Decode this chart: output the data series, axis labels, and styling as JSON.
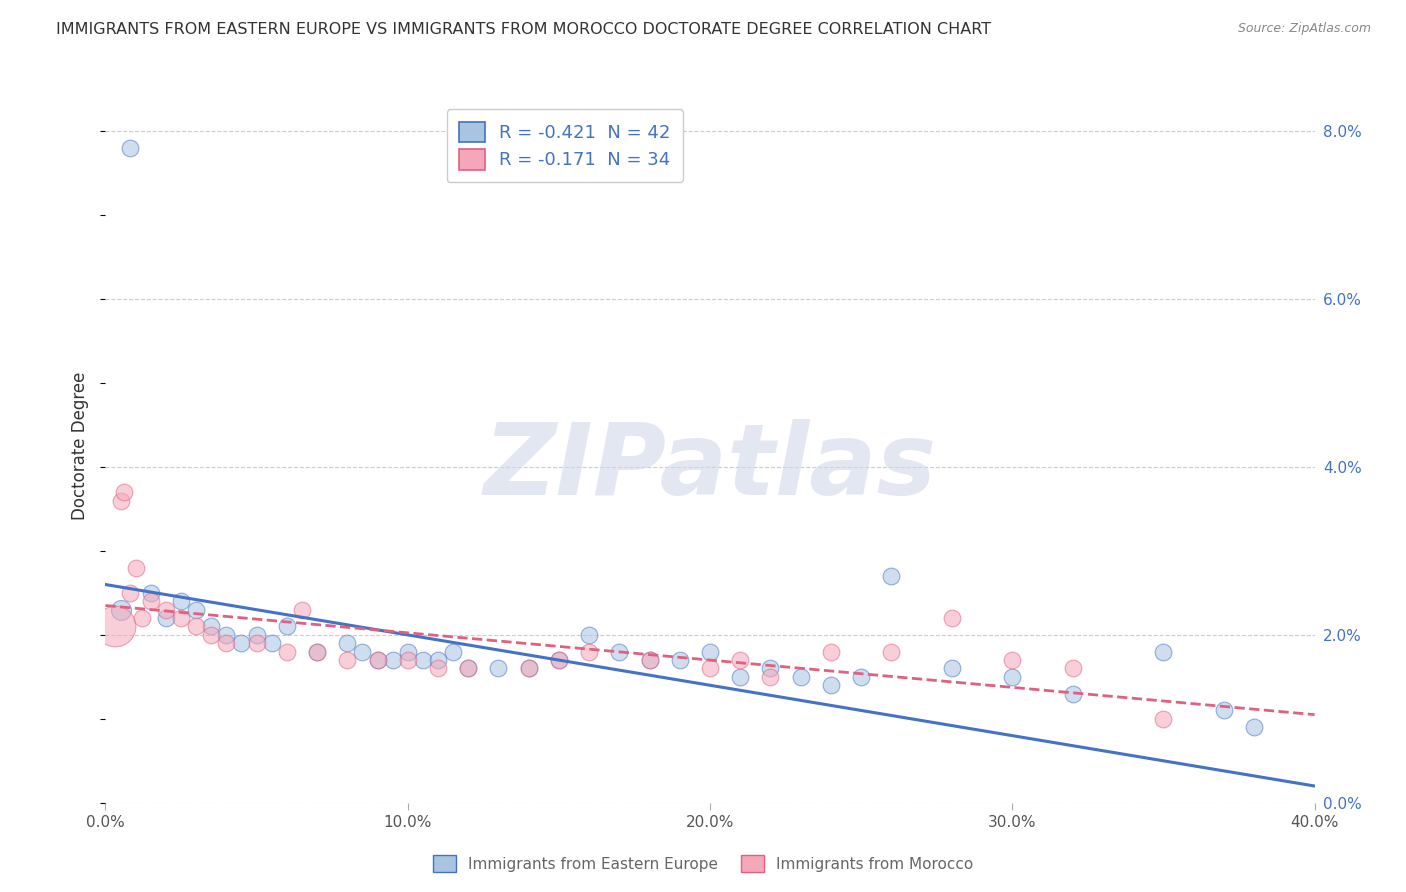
{
  "title": "IMMIGRANTS FROM EASTERN EUROPE VS IMMIGRANTS FROM MOROCCO DOCTORATE DEGREE CORRELATION CHART",
  "source": "Source: ZipAtlas.com",
  "ylabel_label": "Doctorate Degree",
  "legend_series": [
    {
      "label": "Immigrants from Eastern Europe",
      "color": "#a8c4e0",
      "R": -0.421,
      "N": 42
    },
    {
      "label": "Immigrants from Morocco",
      "color": "#f4a7b9",
      "R": -0.171,
      "N": 34
    }
  ],
  "watermark_text": "ZIPatlas",
  "blue_points": [
    [
      0.5,
      2.3,
      18
    ],
    [
      1.5,
      2.5,
      14
    ],
    [
      2.0,
      2.2,
      14
    ],
    [
      2.5,
      2.4,
      14
    ],
    [
      3.0,
      2.3,
      14
    ],
    [
      3.5,
      2.1,
      14
    ],
    [
      4.0,
      2.0,
      14
    ],
    [
      4.5,
      1.9,
      14
    ],
    [
      5.0,
      2.0,
      14
    ],
    [
      5.5,
      1.9,
      14
    ],
    [
      6.0,
      2.1,
      14
    ],
    [
      7.0,
      1.8,
      14
    ],
    [
      8.0,
      1.9,
      14
    ],
    [
      8.5,
      1.8,
      14
    ],
    [
      9.0,
      1.7,
      14
    ],
    [
      9.5,
      1.7,
      14
    ],
    [
      10.0,
      1.8,
      14
    ],
    [
      10.5,
      1.7,
      14
    ],
    [
      11.0,
      1.7,
      14
    ],
    [
      11.5,
      1.8,
      14
    ],
    [
      12.0,
      1.6,
      14
    ],
    [
      13.0,
      1.6,
      14
    ],
    [
      14.0,
      1.6,
      14
    ],
    [
      15.0,
      1.7,
      14
    ],
    [
      16.0,
      2.0,
      14
    ],
    [
      17.0,
      1.8,
      14
    ],
    [
      18.0,
      1.7,
      14
    ],
    [
      19.0,
      1.7,
      14
    ],
    [
      20.0,
      1.8,
      14
    ],
    [
      21.0,
      1.5,
      14
    ],
    [
      22.0,
      1.6,
      14
    ],
    [
      23.0,
      1.5,
      14
    ],
    [
      24.0,
      1.4,
      14
    ],
    [
      25.0,
      1.5,
      14
    ],
    [
      26.0,
      2.7,
      14
    ],
    [
      28.0,
      1.6,
      14
    ],
    [
      30.0,
      1.5,
      14
    ],
    [
      32.0,
      1.3,
      14
    ],
    [
      35.0,
      1.8,
      14
    ],
    [
      37.0,
      1.1,
      14
    ],
    [
      38.0,
      0.9,
      14
    ],
    [
      0.8,
      7.8,
      14
    ]
  ],
  "pink_points": [
    [
      0.3,
      2.1,
      50
    ],
    [
      0.5,
      3.6,
      14
    ],
    [
      0.6,
      3.7,
      14
    ],
    [
      0.8,
      2.5,
      14
    ],
    [
      1.0,
      2.8,
      14
    ],
    [
      1.2,
      2.2,
      14
    ],
    [
      1.5,
      2.4,
      14
    ],
    [
      2.0,
      2.3,
      14
    ],
    [
      2.5,
      2.2,
      14
    ],
    [
      3.0,
      2.1,
      14
    ],
    [
      3.5,
      2.0,
      14
    ],
    [
      4.0,
      1.9,
      14
    ],
    [
      5.0,
      1.9,
      14
    ],
    [
      6.0,
      1.8,
      14
    ],
    [
      6.5,
      2.3,
      14
    ],
    [
      7.0,
      1.8,
      14
    ],
    [
      8.0,
      1.7,
      14
    ],
    [
      9.0,
      1.7,
      14
    ],
    [
      10.0,
      1.7,
      14
    ],
    [
      11.0,
      1.6,
      14
    ],
    [
      12.0,
      1.6,
      14
    ],
    [
      14.0,
      1.6,
      14
    ],
    [
      15.0,
      1.7,
      14
    ],
    [
      16.0,
      1.8,
      14
    ],
    [
      18.0,
      1.7,
      14
    ],
    [
      20.0,
      1.6,
      14
    ],
    [
      21.0,
      1.7,
      14
    ],
    [
      22.0,
      1.5,
      14
    ],
    [
      24.0,
      1.8,
      14
    ],
    [
      26.0,
      1.8,
      14
    ],
    [
      28.0,
      2.2,
      14
    ],
    [
      30.0,
      1.7,
      14
    ],
    [
      32.0,
      1.6,
      14
    ],
    [
      35.0,
      1.0,
      14
    ]
  ],
  "blue_line_x": [
    0,
    40
  ],
  "blue_line_y": [
    2.6,
    0.2
  ],
  "pink_line_x": [
    0,
    40
  ],
  "pink_line_y": [
    2.35,
    1.05
  ],
  "xmin": 0,
  "xmax": 40,
  "ymin": 0,
  "ymax": 8.5,
  "x_ticks": [
    0,
    10,
    20,
    30,
    40
  ],
  "y_ticks": [
    0,
    2,
    4,
    6,
    8
  ],
  "bg_color": "#ffffff",
  "scatter_alpha": 0.55,
  "line_blue_color": "#4472c4",
  "line_pink_color": "#e06080",
  "grid_color": "#cccccc",
  "tick_color": "#aaaaaa",
  "title_color": "#333333",
  "source_color": "#888888",
  "ylabel_color": "#333333",
  "right_tick_color": "#4472c4",
  "legend_text_color": "#4472c4"
}
